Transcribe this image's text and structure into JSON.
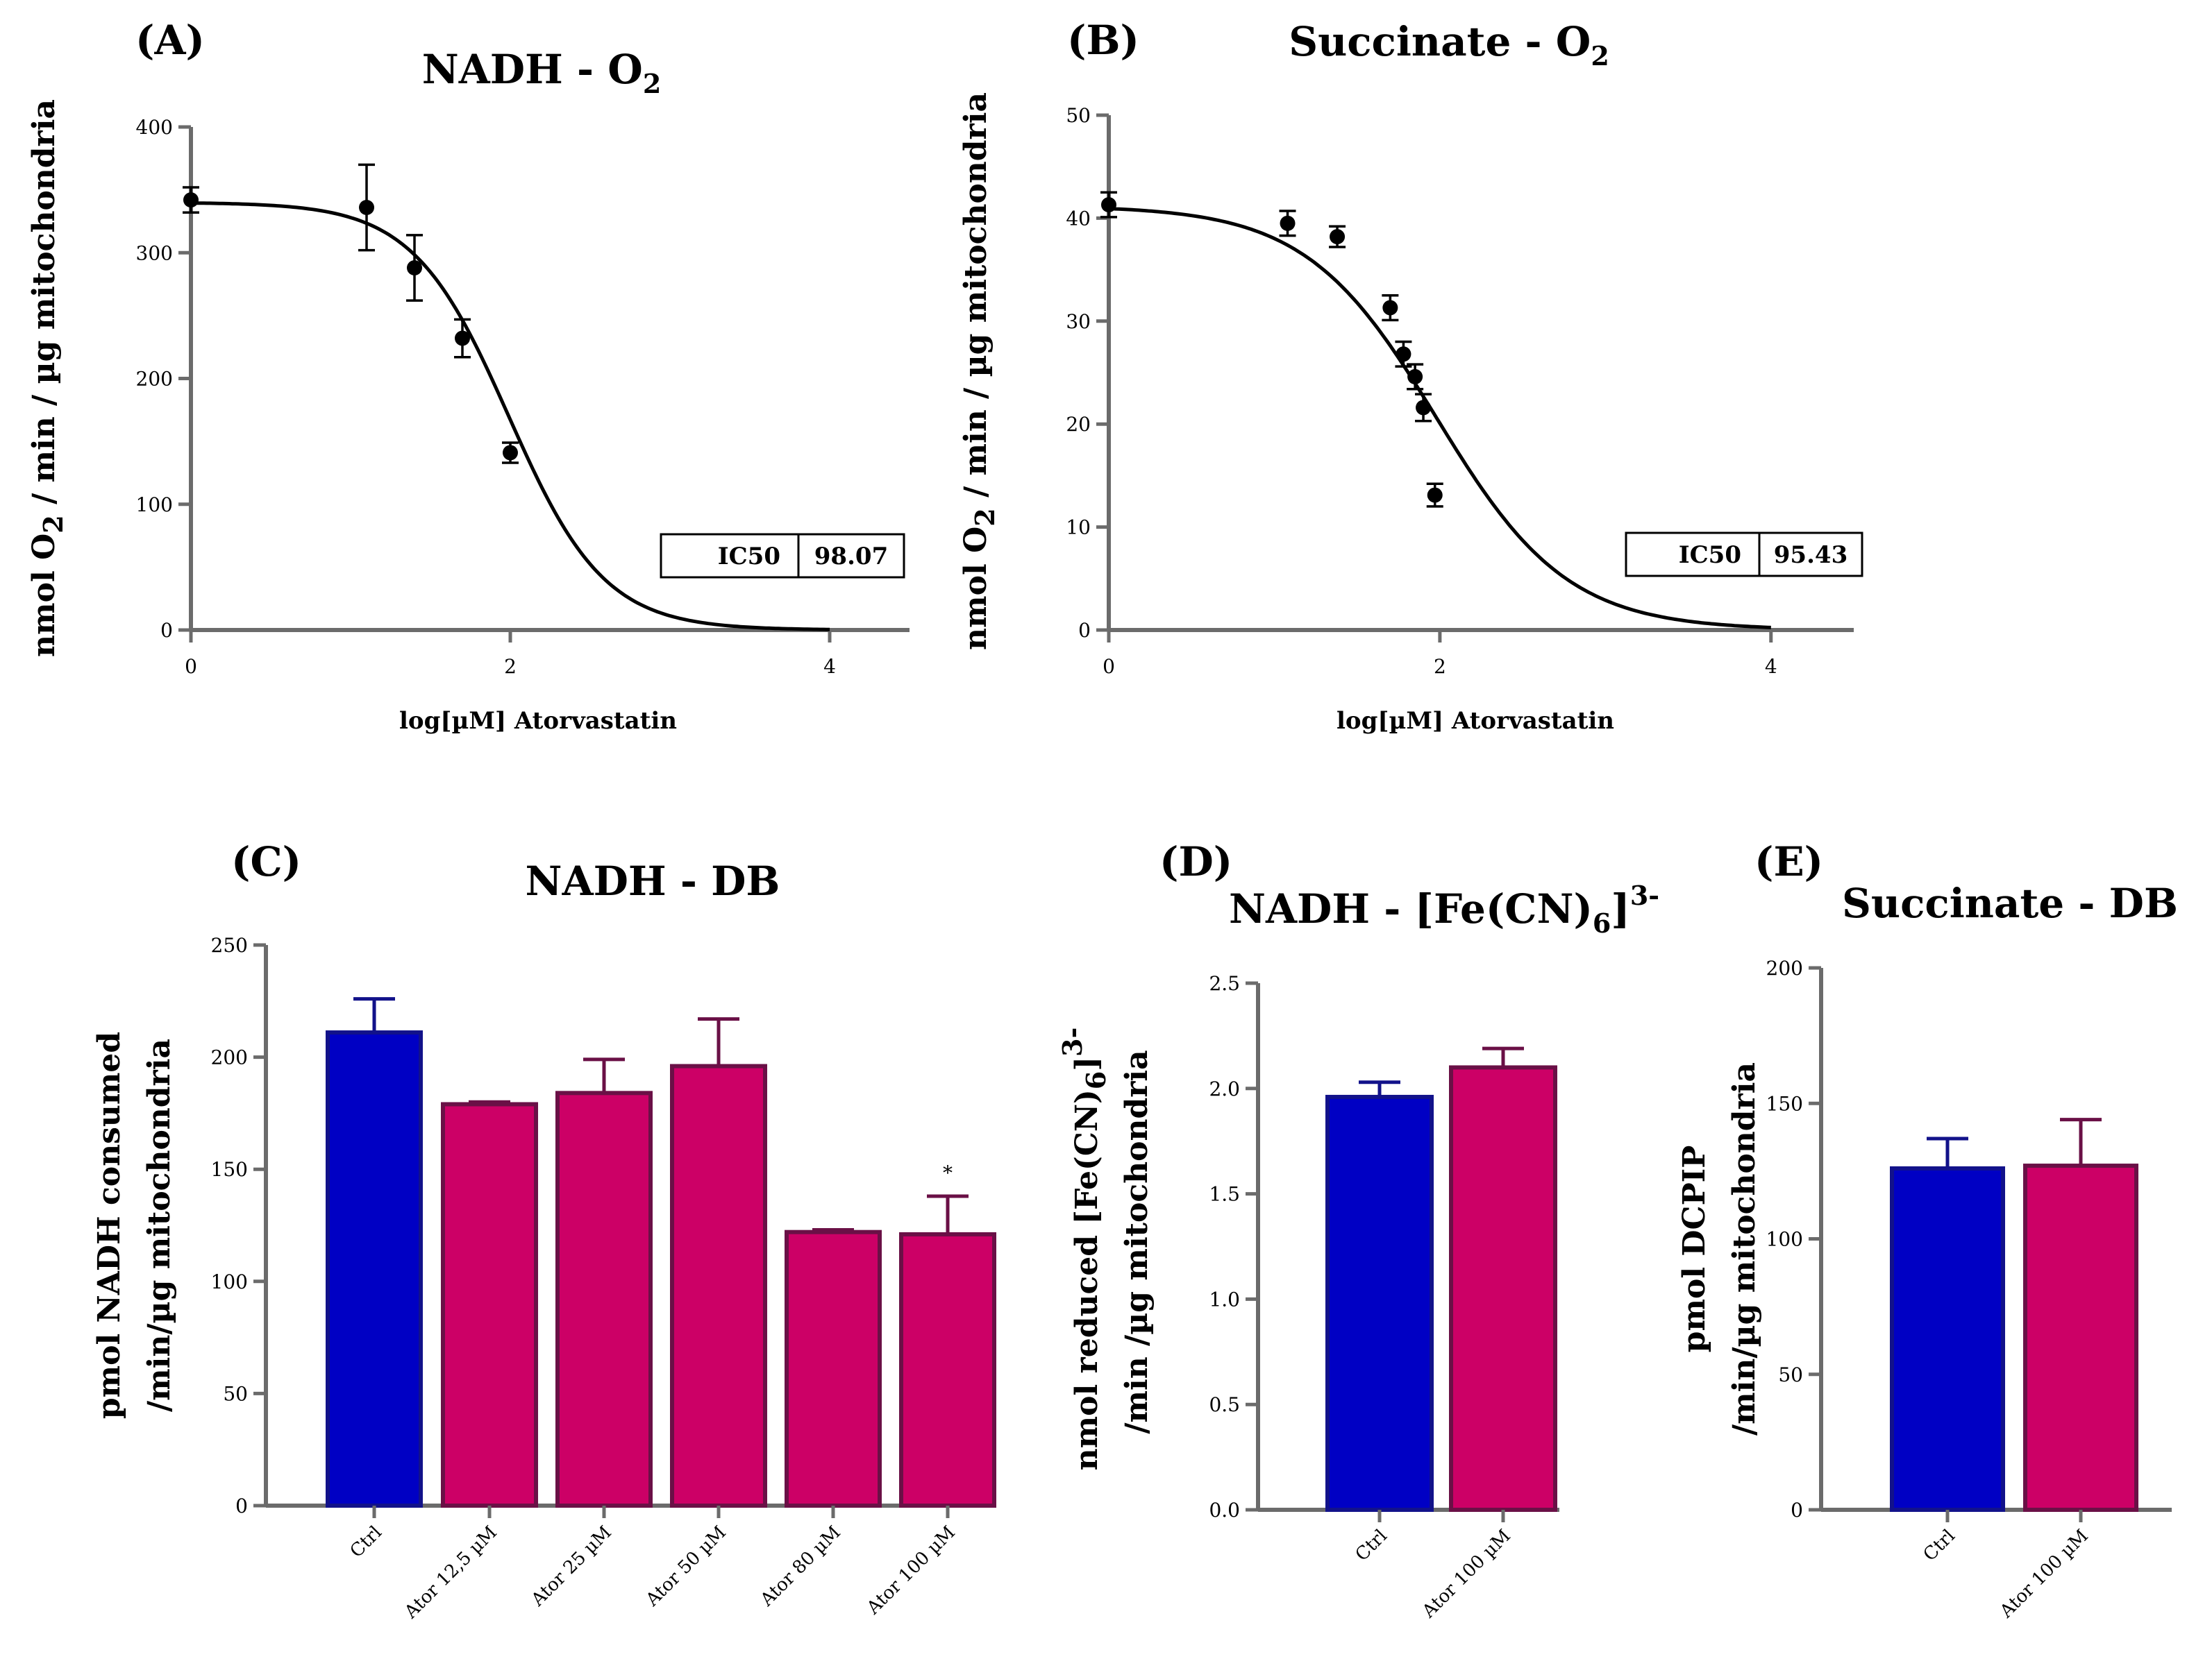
{
  "chart_data": [
    {
      "panel": "(A)",
      "type": "scatter",
      "title": "NADH - O",
      "title_sub": "2",
      "ylabel_parts": [
        "nmol O",
        "2",
        " / min / µg mitochondria"
      ],
      "xlabel": "log[µM] Atorvastatin",
      "xlim": [
        0,
        4.5
      ],
      "ylim": [
        0,
        400
      ],
      "xticks": [
        "0",
        "2",
        "4"
      ],
      "yticks": [
        "0",
        "100",
        "200",
        "300",
        "400"
      ],
      "points": [
        {
          "x": 0,
          "y": 342,
          "err": 10
        },
        {
          "x": 1.1,
          "y": 336,
          "err": 34
        },
        {
          "x": 1.4,
          "y": 288,
          "err": 26
        },
        {
          "x": 1.7,
          "y": 232,
          "err": 15
        },
        {
          "x": 2.0,
          "y": 141,
          "err": 8
        }
      ],
      "fit": {
        "top": 340,
        "bottom": 0,
        "log_ic50": 1.99,
        "hill": 1.45
      },
      "ic50_label": "IC50",
      "ic50_value": "98.07"
    },
    {
      "panel": "(B)",
      "type": "scatter",
      "title": "Succinate - O",
      "title_sub": "2",
      "ylabel_parts": [
        "nmol O",
        "2",
        " / min / µg mitochondria"
      ],
      "xlabel": "log[µM] Atorvastatin",
      "xlim": [
        0,
        4.5
      ],
      "ylim": [
        0,
        50
      ],
      "xticks": [
        "0",
        "2",
        "4"
      ],
      "yticks": [
        "0",
        "10",
        "20",
        "30",
        "40",
        "50"
      ],
      "points": [
        {
          "x": 0,
          "y": 41.3,
          "err": 1.2
        },
        {
          "x": 1.08,
          "y": 39.5,
          "err": 1.2
        },
        {
          "x": 1.38,
          "y": 38.2,
          "err": 1.0
        },
        {
          "x": 1.7,
          "y": 31.3,
          "err": 1.2
        },
        {
          "x": 1.78,
          "y": 26.8,
          "err": 1.2
        },
        {
          "x": 1.85,
          "y": 24.6,
          "err": 1.2
        },
        {
          "x": 1.9,
          "y": 21.6,
          "err": 1.3
        },
        {
          "x": 1.97,
          "y": 13.1,
          "err": 1.1
        }
      ],
      "fit": {
        "top": 41.2,
        "bottom": 0,
        "log_ic50": 1.98,
        "hill": 1.1
      },
      "ic50_label": "IC50",
      "ic50_value": "95.43"
    },
    {
      "panel": "(C)",
      "type": "bar",
      "title": "NADH - DB",
      "ylabel_lines": [
        "pmol NADH consumed",
        "/min/µg mitochondria"
      ],
      "categories": [
        "Ctrl",
        "Ator 12,5 µM",
        "Ator 25 µM",
        "Ator 50 µM",
        "Ator 80 µM",
        "Ator 100 µM"
      ],
      "values": [
        211,
        179,
        184,
        196,
        122,
        121
      ],
      "errors": [
        15,
        1,
        15,
        21,
        1,
        17
      ],
      "significance": [
        "",
        "",
        "",
        "",
        "",
        "*"
      ],
      "ylim": [
        0,
        250
      ],
      "yticks": [
        "0",
        "50",
        "100",
        "150",
        "200",
        "250"
      ]
    },
    {
      "panel": "(D)",
      "type": "bar",
      "title": "NADH - [Fe(CN)",
      "title_sub": "6",
      "title_close": "]",
      "title_sup": "3-",
      "ylabel_line1": [
        "nmol reduced [Fe(CN)",
        "6",
        "]",
        "3-"
      ],
      "ylabel_line2": "/min /µg mitochondria",
      "categories": [
        "Ctrl",
        "Ator 100 µM"
      ],
      "values": [
        1.96,
        2.1
      ],
      "errors": [
        0.07,
        0.09
      ],
      "ylim": [
        0,
        2.5
      ],
      "yticks": [
        "0.0",
        "0.5",
        "1.0",
        "1.5",
        "2.0",
        "2.5"
      ]
    },
    {
      "panel": "(E)",
      "type": "bar",
      "title": "Succinate - DB",
      "ylabel_lines": [
        "pmol DCPIP",
        "/min/µg mitochondria"
      ],
      "categories": [
        "Ctrl",
        "Ator 100 µM"
      ],
      "values": [
        126,
        127
      ],
      "errors": [
        11,
        17
      ],
      "ylim": [
        0,
        200
      ],
      "yticks": [
        "0",
        "50",
        "100",
        "150",
        "200"
      ]
    }
  ],
  "colors": {
    "axis": "#6b6b6b",
    "ctrl_fill": "#0000c4",
    "ctrl_edge": "#12128a",
    "ator_fill": "#cc0066",
    "ator_edge": "#6a1046",
    "point": "#000000",
    "curve": "#000000"
  }
}
